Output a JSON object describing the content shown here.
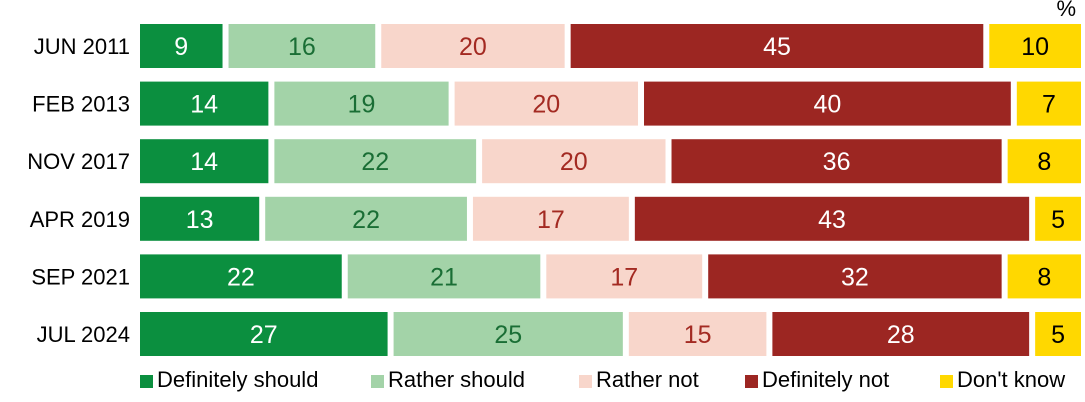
{
  "chart_data": {
    "type": "bar",
    "orientation": "horizontal",
    "stacked": true,
    "unit_label": "%",
    "categories": [
      "JUN 2011",
      "FEB 2013",
      "NOV 2017",
      "APR 2019",
      "SEP 2021",
      "JUL 2024"
    ],
    "series": [
      {
        "name": "Definitely should",
        "color": "#0b8f3f",
        "label_color": "#ffffff",
        "values": [
          9,
          14,
          14,
          13,
          22,
          27
        ]
      },
      {
        "name": "Rather should",
        "color": "#a3d3a8",
        "label_color": "#1a6e35",
        "values": [
          16,
          19,
          22,
          22,
          21,
          25
        ]
      },
      {
        "name": "Rather not",
        "color": "#f8d6cb",
        "label_color": "#a32a22",
        "values": [
          20,
          20,
          20,
          17,
          17,
          15
        ]
      },
      {
        "name": "Definitely not",
        "color": "#9c2622",
        "label_color": "#ffffff",
        "values": [
          45,
          40,
          36,
          43,
          32,
          28
        ]
      },
      {
        "name": "Don't know",
        "color": "#ffd800",
        "label_color": "#000000",
        "values": [
          10,
          7,
          8,
          5,
          8,
          5
        ]
      }
    ],
    "xlim": [
      0,
      100
    ],
    "grid": false,
    "legend_position": "bottom"
  }
}
